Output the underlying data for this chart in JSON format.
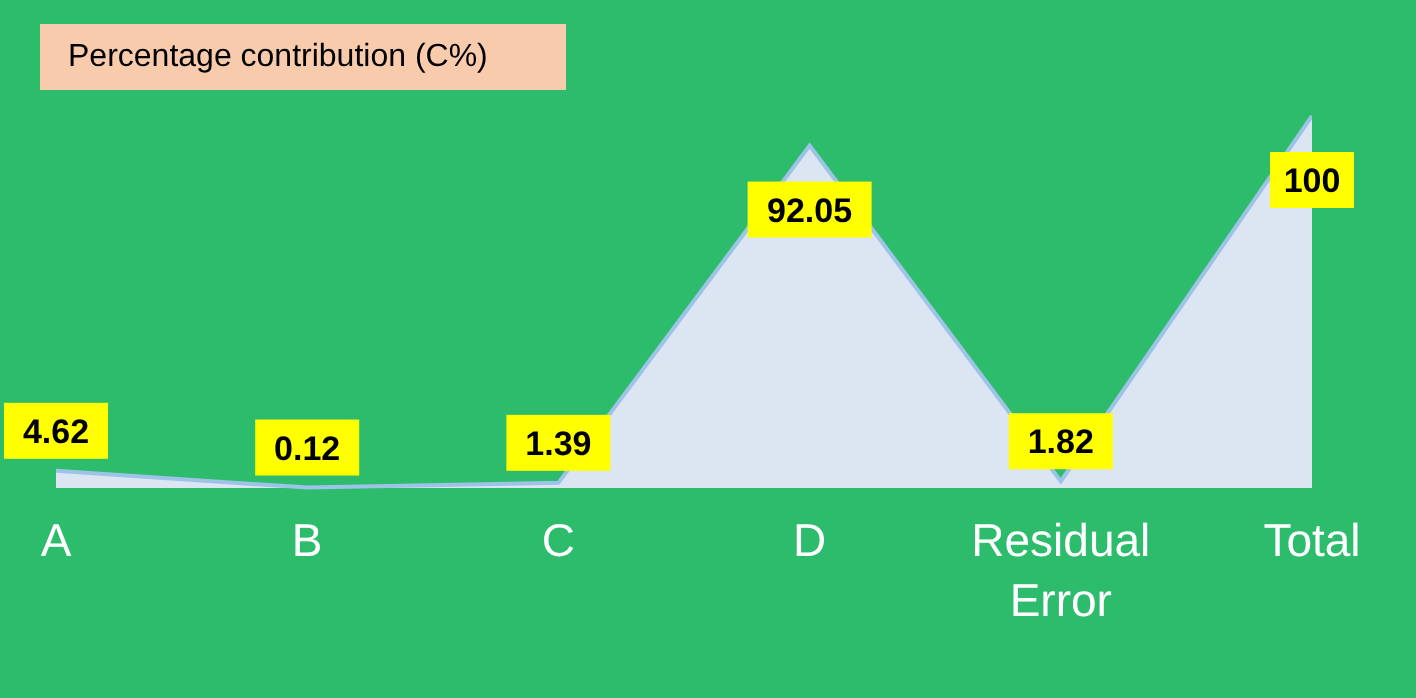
{
  "chart_data": {
    "type": "area",
    "title": "Percentage contribution (C%)",
    "categories": [
      "A",
      "B",
      "C",
      "D",
      "Residual Error",
      "Total"
    ],
    "values": [
      4.62,
      0.12,
      1.39,
      92.05,
      1.82,
      100
    ],
    "value_labels": [
      "4.62",
      "0.12",
      "1.39",
      "92.05",
      "1.82",
      "100"
    ],
    "color": "#dce6f2",
    "grid": false,
    "legend": false
  }
}
